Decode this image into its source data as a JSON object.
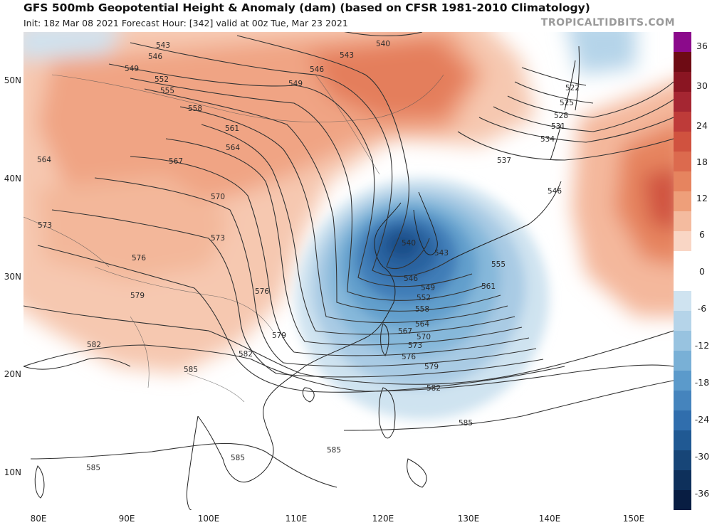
{
  "header": {
    "title": "GFS 500mb Geopotential Height & Anomaly (dam) (based on CFSR 1981-2010 Climatology)",
    "subtitle": "Init: 18z Mar 08 2021   Forecast Hour: [342]   valid at 00z Tue, Mar 23 2021",
    "brand": "TROPICALTIDBITS.COM"
  },
  "axes": {
    "lat_labels": [
      "50N",
      "40N",
      "30N",
      "20N",
      "10N"
    ],
    "lon_labels": [
      "80E",
      "90E",
      "100E",
      "110E",
      "120E",
      "130E",
      "140E",
      "150E"
    ]
  },
  "colorbar": {
    "labels": [
      "36",
      "30",
      "24",
      "18",
      "12",
      "6",
      "0",
      "-6",
      "-12",
      "-18",
      "-24",
      "-30",
      "-36"
    ],
    "colors": [
      "#8b0a8b",
      "#6e0b14",
      "#8a1522",
      "#a52632",
      "#be3b39",
      "#d0523f",
      "#dc6a4e",
      "#e6845f",
      "#ee9f7a",
      "#f4bb9f",
      "#f9d6c5",
      "#ffffff",
      "#ffffff",
      "#cfe3f0",
      "#b5d4e9",
      "#98c3e0",
      "#79b0d6",
      "#5b9acb",
      "#4584bd",
      "#306ead",
      "#205993",
      "#174577",
      "#0e305b",
      "#081d42"
    ]
  },
  "map": {
    "contour_labels": [
      "540",
      "543",
      "546",
      "549",
      "552",
      "555",
      "558",
      "561",
      "564",
      "567",
      "570",
      "573",
      "576",
      "579",
      "582",
      "585",
      "522",
      "525",
      "528",
      "531",
      "534",
      "537"
    ],
    "height_labels": [
      {
        "t": "540"
      },
      {
        "t": "543"
      },
      {
        "t": "543"
      },
      {
        "t": "546"
      },
      {
        "t": "546"
      },
      {
        "t": "549"
      },
      {
        "t": "549"
      },
      {
        "t": "552"
      },
      {
        "t": "555"
      },
      {
        "t": "558"
      },
      {
        "t": "561"
      },
      {
        "t": "564"
      },
      {
        "t": "567"
      },
      {
        "t": "564"
      },
      {
        "t": "570"
      },
      {
        "t": "573"
      },
      {
        "t": "573"
      },
      {
        "t": "576"
      },
      {
        "t": "576"
      },
      {
        "t": "579"
      },
      {
        "t": "579"
      },
      {
        "t": "582"
      },
      {
        "t": "582"
      },
      {
        "t": "585"
      },
      {
        "t": "585"
      },
      {
        "t": "585"
      },
      {
        "t": "585"
      },
      {
        "t": "540"
      },
      {
        "t": "543"
      },
      {
        "t": "546"
      },
      {
        "t": "549"
      },
      {
        "t": "552"
      },
      {
        "t": "555"
      },
      {
        "t": "558"
      },
      {
        "t": "561"
      },
      {
        "t": "564"
      },
      {
        "t": "567"
      },
      {
        "t": "570"
      },
      {
        "t": "573"
      },
      {
        "t": "576"
      },
      {
        "t": "579"
      },
      {
        "t": "582"
      },
      {
        "t": "585"
      },
      {
        "t": "522"
      },
      {
        "t": "525"
      },
      {
        "t": "528"
      },
      {
        "t": "531"
      },
      {
        "t": "534"
      },
      {
        "t": "537"
      },
      {
        "t": "546"
      }
    ]
  }
}
